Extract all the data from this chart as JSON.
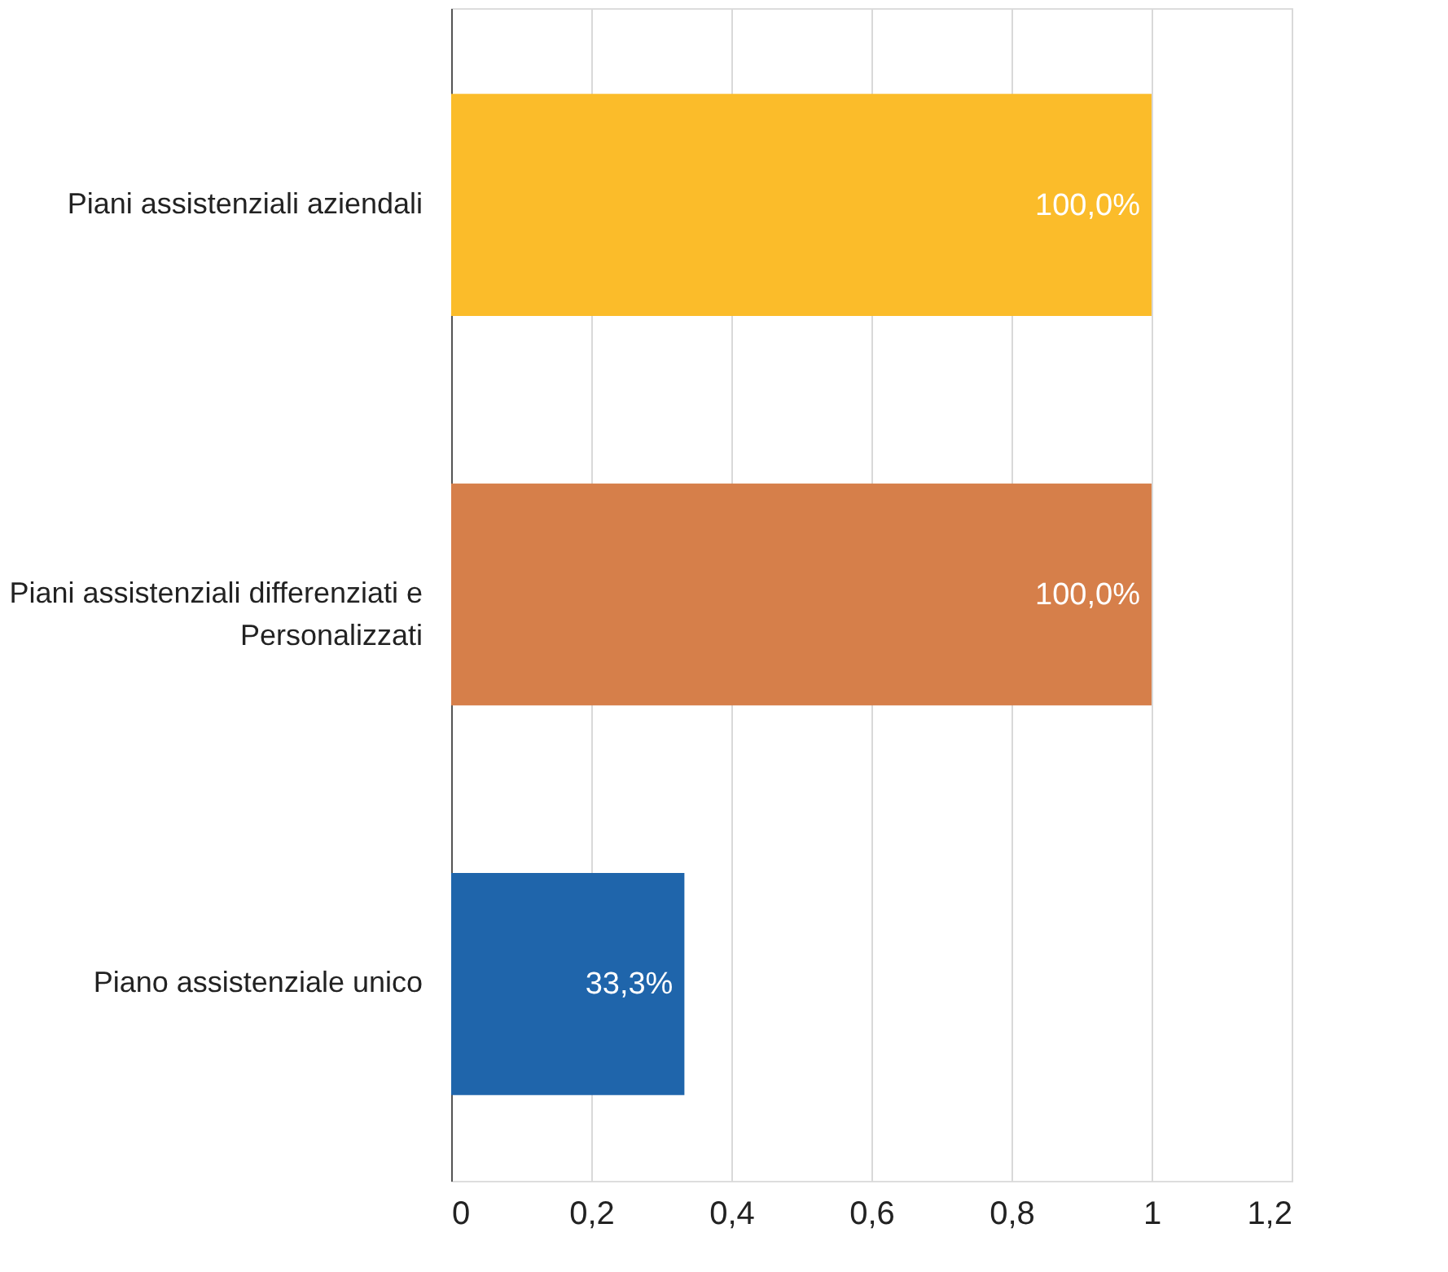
{
  "chart_data": {
    "type": "bar",
    "orientation": "horizontal",
    "categories": [
      "Piani assistenziali aziendali",
      "Piani assistenziali differenziati e Personalizzati",
      "Piano assistenziale unico"
    ],
    "values": [
      1,
      1,
      0.333
    ],
    "colors": [
      "#fbbc2a",
      "#d67f4a",
      "#1f65ab"
    ],
    "value_labels": [
      "100,0%",
      "100,0%",
      "33,3%"
    ],
    "xlim": [
      0,
      1.2
    ],
    "xticks": [
      0,
      {
        "value": 0.2,
        "label": "0,2"
      },
      {
        "value": 0.4,
        "label": "0,4"
      },
      {
        "value": 0.6,
        "label": "0,6"
      },
      {
        "value": 0.8,
        "label": "0,8"
      },
      1,
      {
        "value": 1.2,
        "label": "1,2"
      }
    ],
    "grid": "x"
  }
}
